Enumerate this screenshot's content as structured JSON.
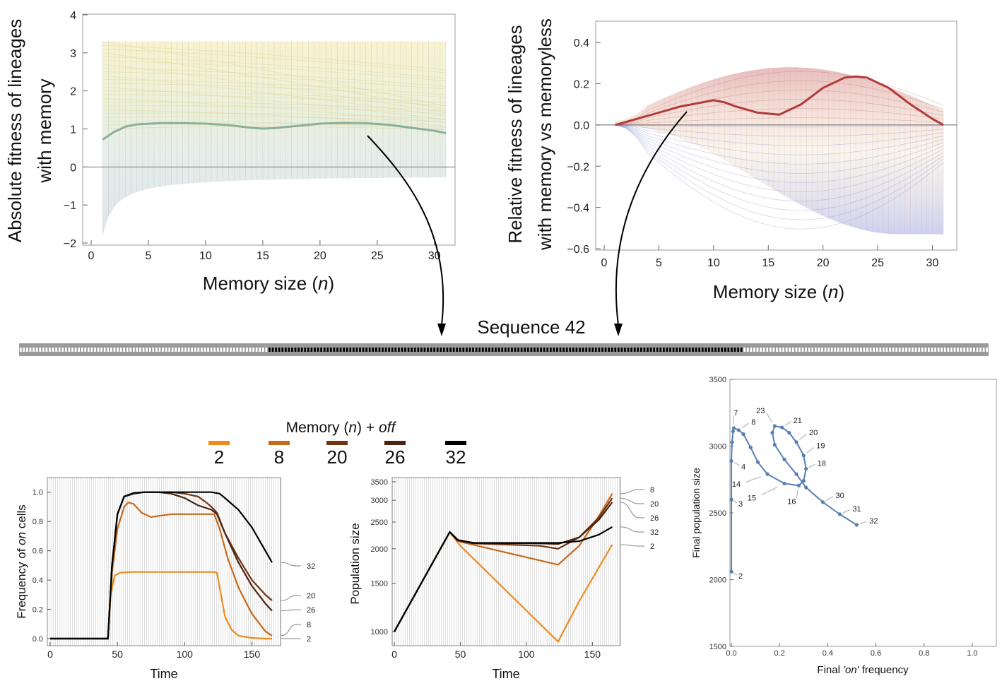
{
  "panel_a": {
    "ylabel_line1": "Absolute fitness of lineages",
    "ylabel_line2": "with memory",
    "xlabel_main": "Memory size (",
    "xlabel_var": "n",
    "xlabel_end": ")"
  },
  "panel_b": {
    "ylabel_line1": "Relative fitness of lineages",
    "ylabel_line2": "with memory vs memoryless",
    "xlabel_main": "Memory size (",
    "xlabel_var": "n",
    "xlabel_end": ")"
  },
  "sequence": {
    "title": "Sequence 42",
    "bar_start": 0.25,
    "bar_end": 0.75
  },
  "legend": {
    "title_main": "Memory (",
    "title_var": "n",
    "title_mid": ") + ",
    "title_off": "off",
    "items": [
      {
        "label": "2",
        "color": "#ee8a1e"
      },
      {
        "label": "8",
        "color": "#c8681a"
      },
      {
        "label": "20",
        "color": "#6e3412"
      },
      {
        "label": "26",
        "color": "#4a2410"
      },
      {
        "label": "32",
        "color": "#000000"
      }
    ]
  },
  "panel_c": {
    "ylabel_pre": "Frequency of ",
    "ylabel_var": "on",
    "ylabel_post": " cells",
    "xlabel": "Time",
    "end_labels": [
      "32",
      "20",
      "26",
      "8",
      "2"
    ]
  },
  "panel_d": {
    "ylabel": "Population size",
    "xlabel": "Time",
    "end_labels": [
      "8",
      "20",
      "26",
      "32",
      "2"
    ]
  },
  "panel_e": {
    "ylabel": "Final population size",
    "xlabel_pre": "Final ",
    "xlabel_var": "'on'",
    "xlabel_post": " frequency"
  },
  "chart_data": [
    {
      "id": "absolute-fitness",
      "type": "line",
      "xlim": [
        0,
        31
      ],
      "ylim": [
        -2,
        4
      ],
      "xticks": [
        0,
        5,
        10,
        15,
        20,
        25,
        30
      ],
      "yticks": [
        -2,
        -1,
        0,
        1,
        2,
        3,
        4
      ],
      "ytick_labels": [
        "−2",
        "−1",
        "0",
        "1",
        "2",
        "3",
        "4"
      ],
      "series": [
        {
          "x": [
            1,
            2,
            3,
            4,
            6,
            8,
            10,
            12,
            14,
            15,
            16,
            18,
            20,
            22,
            24,
            26,
            28,
            30,
            31
          ],
          "y": [
            0.72,
            0.92,
            1.06,
            1.12,
            1.15,
            1.15,
            1.14,
            1.1,
            1.03,
            1.01,
            1.02,
            1.08,
            1.14,
            1.16,
            1.15,
            1.11,
            1.03,
            0.95,
            0.89
          ],
          "color": "#8ab09a"
        }
      ],
      "grid": false
    },
    {
      "id": "relative-fitness",
      "type": "line",
      "xlim": [
        0,
        31
      ],
      "ylim": [
        -0.6,
        0.5
      ],
      "xticks": [
        0,
        5,
        10,
        15,
        20,
        25,
        30
      ],
      "yticks": [
        -0.6,
        -0.4,
        -0.2,
        0.0,
        0.2,
        0.4
      ],
      "ytick_labels": [
        "−0.6",
        "−0.4",
        "−0.2",
        "0.0",
        "0.2",
        "0.4"
      ],
      "series": [
        {
          "x": [
            1,
            3,
            5,
            7,
            9,
            10,
            11,
            12,
            14,
            16,
            18,
            20,
            22,
            23,
            24,
            26,
            28,
            30,
            31
          ],
          "y": [
            0.0,
            0.03,
            0.06,
            0.09,
            0.11,
            0.12,
            0.11,
            0.09,
            0.06,
            0.05,
            0.1,
            0.18,
            0.23,
            0.235,
            0.23,
            0.18,
            0.1,
            0.03,
            0.0
          ],
          "color": "#b23a3a"
        }
      ],
      "grid": false
    },
    {
      "id": "frequency-on",
      "type": "line",
      "xlim": [
        0,
        165
      ],
      "ylim": [
        0,
        1.1
      ],
      "xticks": [
        0,
        50,
        100,
        150
      ],
      "yticks": [
        0.0,
        0.2,
        0.4,
        0.6,
        0.8,
        1.0
      ],
      "ytick_labels": [
        "0.0",
        "0.2",
        "0.4",
        "0.6",
        "0.8",
        "1.0"
      ],
      "series": [
        {
          "name": "2",
          "x": [
            0,
            43,
            45,
            48,
            52,
            60,
            122,
            124,
            127,
            130,
            135,
            140,
            150,
            160,
            165
          ],
          "y": [
            0,
            0,
            0.3,
            0.43,
            0.45,
            0.455,
            0.455,
            0.45,
            0.3,
            0.15,
            0.06,
            0.02,
            0.005,
            0,
            0
          ]
        },
        {
          "name": "8",
          "x": [
            0,
            43,
            46,
            50,
            55,
            58,
            62,
            68,
            75,
            82,
            90,
            100,
            110,
            122,
            126,
            132,
            140,
            150,
            160,
            165
          ],
          "y": [
            0,
            0,
            0.45,
            0.75,
            0.9,
            0.93,
            0.92,
            0.86,
            0.83,
            0.84,
            0.85,
            0.85,
            0.85,
            0.85,
            0.75,
            0.55,
            0.35,
            0.17,
            0.05,
            0.02
          ]
        },
        {
          "name": "20",
          "x": [
            0,
            43,
            46,
            50,
            55,
            62,
            70,
            80,
            90,
            100,
            110,
            116,
            120,
            124,
            130,
            140,
            150,
            160,
            165
          ],
          "y": [
            0,
            0,
            0.5,
            0.85,
            0.97,
            0.99,
            1.0,
            1.0,
            1.0,
            0.99,
            0.97,
            0.93,
            0.9,
            0.86,
            0.72,
            0.55,
            0.4,
            0.3,
            0.26
          ]
        },
        {
          "name": "26",
          "x": [
            0,
            43,
            46,
            50,
            55,
            62,
            70,
            80,
            90,
            100,
            110,
            120,
            124,
            130,
            140,
            150,
            160,
            165
          ],
          "y": [
            0,
            0,
            0.5,
            0.85,
            0.97,
            0.99,
            1.0,
            1.0,
            0.99,
            0.96,
            0.91,
            0.88,
            0.85,
            0.72,
            0.52,
            0.36,
            0.24,
            0.19
          ]
        },
        {
          "name": "32",
          "x": [
            0,
            43,
            46,
            50,
            55,
            62,
            70,
            80,
            100,
            120,
            126,
            130,
            140,
            150,
            160,
            165
          ],
          "y": [
            0,
            0,
            0.5,
            0.85,
            0.97,
            0.995,
            1.0,
            1.0,
            1.0,
            1.0,
            0.99,
            0.96,
            0.88,
            0.76,
            0.6,
            0.52
          ]
        }
      ],
      "grid": false
    },
    {
      "id": "population-size",
      "type": "line",
      "scale": "log",
      "xlim": [
        0,
        168
      ],
      "ylim": [
        900,
        3500
      ],
      "xticks": [
        0,
        50,
        100,
        150
      ],
      "yticks": [
        1000,
        1500,
        2000,
        2500,
        3000,
        3500
      ],
      "series": [
        {
          "name": "2",
          "x": [
            0,
            42,
            50,
            124,
            140,
            165
          ],
          "y": [
            1000,
            2300,
            2050,
            920,
            1290,
            2070
          ]
        },
        {
          "name": "8",
          "x": [
            0,
            42,
            50,
            124,
            140,
            155,
            165
          ],
          "y": [
            1000,
            2300,
            2120,
            1750,
            2050,
            2630,
            3170
          ]
        },
        {
          "name": "20",
          "x": [
            0,
            42,
            48,
            60,
            110,
            124,
            140,
            155,
            165
          ],
          "y": [
            1000,
            2300,
            2140,
            2090,
            2050,
            2000,
            2200,
            2600,
            3050
          ]
        },
        {
          "name": "26",
          "x": [
            0,
            42,
            48,
            60,
            110,
            124,
            140,
            155,
            165
          ],
          "y": [
            1000,
            2300,
            2150,
            2100,
            2090,
            2080,
            2200,
            2550,
            2950
          ]
        },
        {
          "name": "32",
          "x": [
            0,
            42,
            48,
            60,
            100,
            124,
            140,
            155,
            165
          ],
          "y": [
            1000,
            2300,
            2150,
            2100,
            2100,
            2100,
            2130,
            2250,
            2400
          ]
        }
      ],
      "grid": false
    },
    {
      "id": "final-population-vs-frequency",
      "type": "scatter",
      "xlim": [
        0,
        1.1
      ],
      "ylim": [
        1500,
        3500
      ],
      "xticks": [
        0.0,
        0.2,
        0.4,
        0.6,
        0.8,
        1.0
      ],
      "yticks": [
        1500,
        2000,
        2500,
        3000,
        3500
      ],
      "points": [
        {
          "x": 0.0,
          "y": 2060,
          "label": "2"
        },
        {
          "x": 0.0,
          "y": 2600,
          "label": "3"
        },
        {
          "x": 0.0,
          "y": 2890,
          "label": "4"
        },
        {
          "x": 0.003,
          "y": 3030
        },
        {
          "x": 0.007,
          "y": 3110
        },
        {
          "x": 0.01,
          "y": 3135,
          "label": "7"
        },
        {
          "x": 0.03,
          "y": 3120,
          "label": "8"
        },
        {
          "x": 0.05,
          "y": 3090
        },
        {
          "x": 0.08,
          "y": 2990
        },
        {
          "x": 0.11,
          "y": 2880
        },
        {
          "x": 0.15,
          "y": 2790,
          "label": "14"
        },
        {
          "x": 0.22,
          "y": 2720,
          "label": "15"
        },
        {
          "x": 0.28,
          "y": 2705,
          "label": "16"
        },
        {
          "x": 0.3,
          "y": 2740
        },
        {
          "x": 0.31,
          "y": 2830,
          "label": "18"
        },
        {
          "x": 0.3,
          "y": 2930,
          "label": "19"
        },
        {
          "x": 0.27,
          "y": 3030,
          "label": "20"
        },
        {
          "x": 0.24,
          "y": 3100
        },
        {
          "x": 0.21,
          "y": 3140,
          "label": "21"
        },
        {
          "x": 0.18,
          "y": 3150,
          "label": "23"
        },
        {
          "x": 0.17,
          "y": 3100
        },
        {
          "x": 0.18,
          "y": 3010
        },
        {
          "x": 0.22,
          "y": 2900
        },
        {
          "x": 0.27,
          "y": 2790
        },
        {
          "x": 0.31,
          "y": 2690
        },
        {
          "x": 0.38,
          "y": 2580,
          "label": "30"
        },
        {
          "x": 0.45,
          "y": 2490,
          "label": "31"
        },
        {
          "x": 0.52,
          "y": 2410,
          "label": "32"
        }
      ],
      "color": "#5b7fb3",
      "grid": false
    }
  ]
}
